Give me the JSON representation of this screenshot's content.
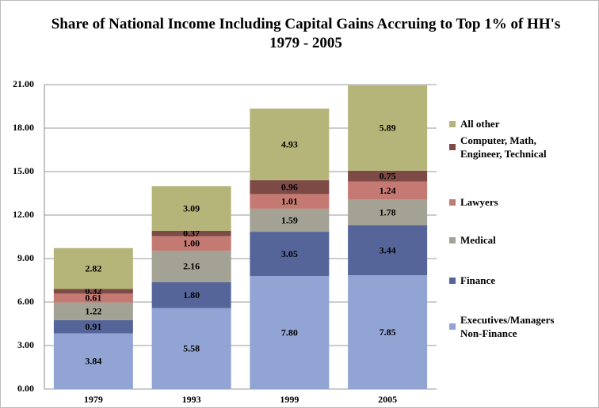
{
  "chart_data": {
    "type": "stacked-bar",
    "title": "Share of National Income Including Capital Gains Accruing to Top 1% of HH's 1979 - 2005",
    "categories": [
      "1979",
      "1993",
      "1999",
      "2005"
    ],
    "series": [
      {
        "name": "Executives/Managers Non-Finance",
        "color": "#91a4d4",
        "values": [
          3.84,
          5.58,
          7.8,
          7.85
        ],
        "value_labels": [
          "3.84",
          "5.58",
          "7.80",
          "7.85"
        ]
      },
      {
        "name": "Finance",
        "color": "#55659a",
        "values": [
          0.91,
          1.8,
          3.05,
          3.44
        ],
        "value_labels": [
          "0.91",
          "1.80",
          "3.05",
          "3.44"
        ]
      },
      {
        "name": "Medical",
        "color": "#a4a294",
        "values": [
          1.22,
          2.16,
          1.59,
          1.78
        ],
        "value_labels": [
          "1.22",
          "2.16",
          "1.59",
          "1.78"
        ]
      },
      {
        "name": "Lawyers",
        "color": "#c47a72",
        "values": [
          0.61,
          1.0,
          1.01,
          1.24
        ],
        "value_labels": [
          "0.61",
          "1.00",
          "1.01",
          "1.24"
        ]
      },
      {
        "name": "Computer, Math, Engineer, Technical",
        "color": "#7d4a46",
        "values": [
          0.32,
          0.37,
          0.96,
          0.75
        ],
        "value_labels": [
          "0.32",
          "0.37",
          "0.96",
          "0.75"
        ]
      },
      {
        "name": "All other",
        "color": "#b5b57a",
        "values": [
          2.82,
          3.09,
          4.93,
          5.89
        ],
        "value_labels": [
          "2.82",
          "3.09",
          "4.93",
          "5.89"
        ]
      }
    ],
    "ylim": [
      0,
      21
    ],
    "yticks": [
      {
        "value": 0,
        "label": "0.00"
      },
      {
        "value": 3,
        "label": "3.00"
      },
      {
        "value": 6,
        "label": "6.00"
      },
      {
        "value": 9,
        "label": "9.00"
      },
      {
        "value": 12,
        "label": "12.00"
      },
      {
        "value": 15,
        "label": "15.00"
      },
      {
        "value": 18,
        "label": "18.00"
      },
      {
        "value": 21,
        "label": "21.00"
      }
    ],
    "grid": true,
    "legend": "right"
  }
}
